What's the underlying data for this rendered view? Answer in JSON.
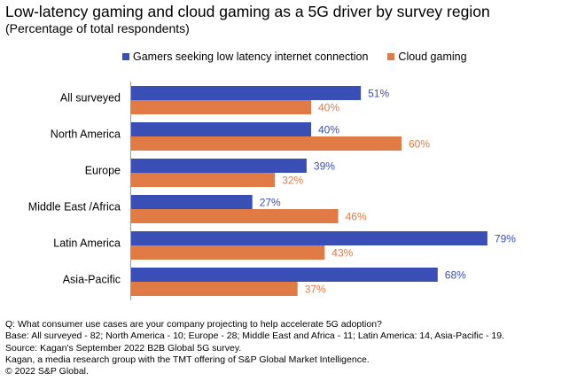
{
  "title": "Low-latency gaming and cloud gaming as a 5G driver by survey region",
  "subtitle": "(Percentage of total respondents)",
  "colors": {
    "series1": "#3a4fb5",
    "series2": "#e07b45",
    "axis": "#9a9a9a"
  },
  "chart_data": {
    "type": "bar",
    "orientation": "horizontal",
    "categories": [
      "All surveyed",
      "North America",
      "Europe",
      "Middle East /Africa",
      "Latin America",
      "Asia-Pacific"
    ],
    "series": [
      {
        "name": "Gamers seeking low latency internet connection",
        "values": [
          51,
          40,
          39,
          27,
          79,
          68
        ],
        "labels": [
          "51%",
          "40%",
          "39%",
          "27%",
          "79%",
          "68%"
        ]
      },
      {
        "name": "Cloud gaming",
        "values": [
          40,
          60,
          32,
          46,
          43,
          37
        ],
        "labels": [
          "40%",
          "60%",
          "32%",
          "46%",
          "43%",
          "37%"
        ]
      }
    ],
    "xlim": [
      0,
      100
    ],
    "legend_position": "top"
  },
  "footnotes": [
    "Q: What consumer use cases are your company projecting to help accelerate 5G adoption?",
    "Base: All surveyed - 82; North America - 10; Europe - 28; Middle East and Africa - 11; Latin America: 14, Asia-Pacific - 19.",
    "Source: Kagan's September 2022 B2B Global 5G survey.",
    "Kagan, a media research group with the TMT offering of S&P Global Market Intelligence.",
    "© 2022 S&P Global."
  ]
}
